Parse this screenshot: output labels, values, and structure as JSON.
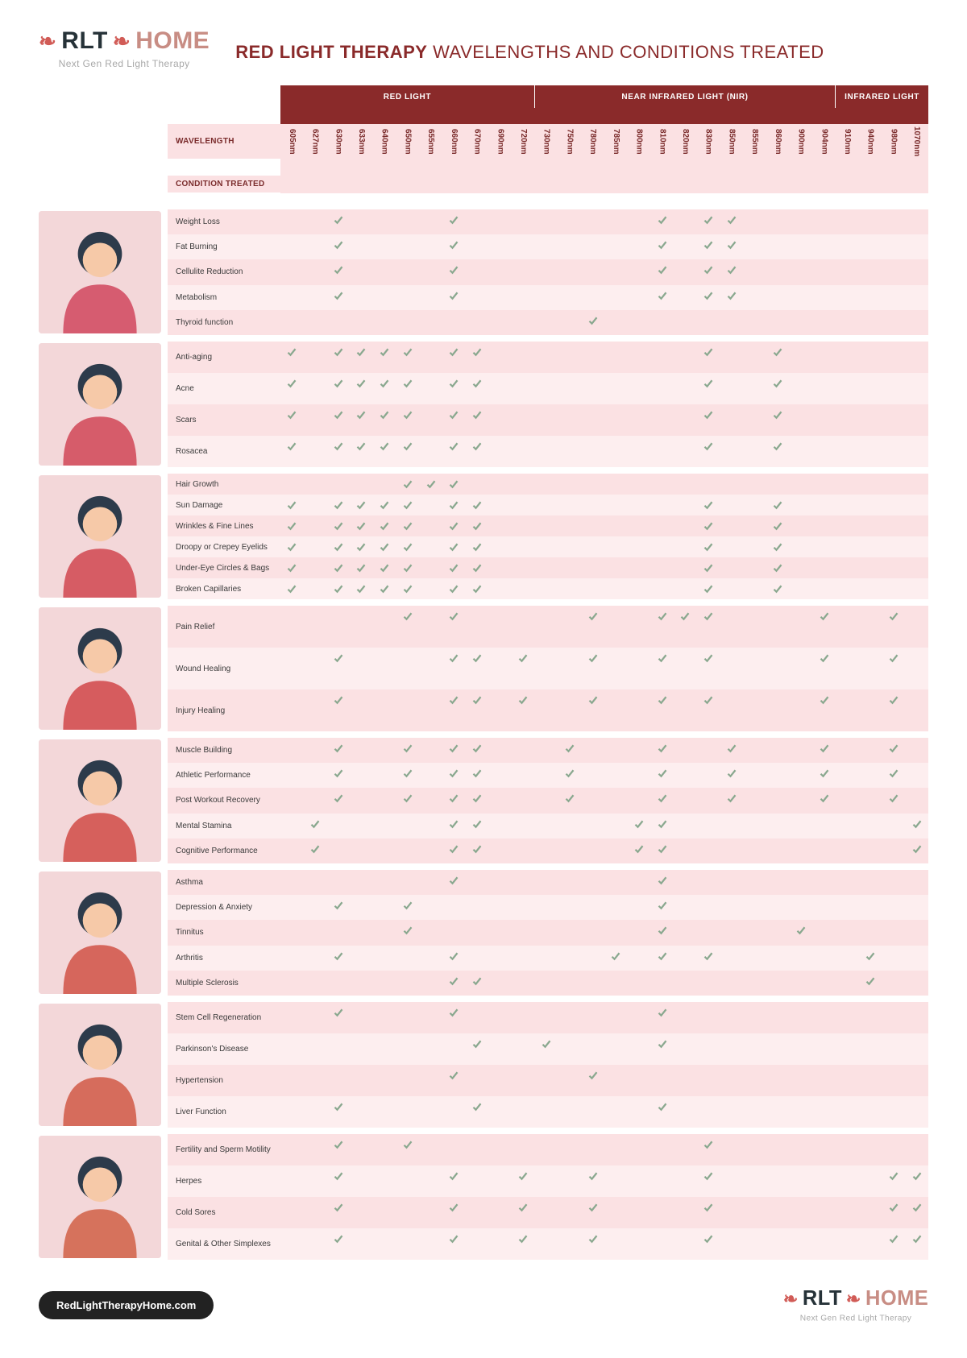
{
  "logo": {
    "left": "RLT",
    "right": "HOME",
    "sub": "Next Gen Red Light Therapy"
  },
  "title_bold": "RED LIGHT THERAPY",
  "title_rest": "WAVELENGTHS AND CONDITIONS TREATED",
  "label_wavelength": "WAVELENGTH",
  "label_condition": "CONDITION TREATED",
  "categories": [
    {
      "name": "RED LIGHT",
      "span": 11
    },
    {
      "name": "NEAR INFRARED LIGHT (NIR)",
      "span": 13
    },
    {
      "name": "INFRARED LIGHT",
      "span": 4
    }
  ],
  "wavelengths": [
    "605nm",
    "627nm",
    "630nm",
    "633nm",
    "640nm",
    "650nm",
    "655nm",
    "660nm",
    "670nm",
    "690nm",
    "720nm",
    "730nm",
    "750nm",
    "780nm",
    "785nm",
    "800nm",
    "810nm",
    "820nm",
    "830nm",
    "850nm",
    "855nm",
    "860nm",
    "900nm",
    "904nm",
    "910nm",
    "940nm",
    "980nm",
    "1070nm"
  ],
  "sections": [
    {
      "rows": [
        {
          "c": "Weight Loss",
          "w": [
            "630nm",
            "660nm",
            "810nm",
            "830nm",
            "850nm"
          ]
        },
        {
          "c": "Fat Burning",
          "w": [
            "630nm",
            "660nm",
            "810nm",
            "830nm",
            "850nm"
          ]
        },
        {
          "c": "Cellulite Reduction",
          "w": [
            "630nm",
            "660nm",
            "810nm",
            "830nm",
            "850nm"
          ]
        },
        {
          "c": "Metabolism",
          "w": [
            "630nm",
            "660nm",
            "810nm",
            "830nm",
            "850nm"
          ]
        },
        {
          "c": "Thyroid function",
          "w": [
            "780nm"
          ]
        }
      ]
    },
    {
      "rows": [
        {
          "c": "Anti-aging",
          "w": [
            "605nm",
            "630nm",
            "633nm",
            "640nm",
            "650nm",
            "660nm",
            "670nm",
            "830nm",
            "860nm"
          ]
        },
        {
          "c": "Acne",
          "w": [
            "605nm",
            "630nm",
            "633nm",
            "640nm",
            "650nm",
            "660nm",
            "670nm",
            "830nm",
            "860nm"
          ]
        },
        {
          "c": "Scars",
          "w": [
            "605nm",
            "630nm",
            "633nm",
            "640nm",
            "650nm",
            "660nm",
            "670nm",
            "830nm",
            "860nm"
          ]
        },
        {
          "c": "Rosacea",
          "w": [
            "605nm",
            "630nm",
            "633nm",
            "640nm",
            "650nm",
            "660nm",
            "670nm",
            "830nm",
            "860nm"
          ]
        }
      ]
    },
    {
      "rows": [
        {
          "c": "Hair Growth",
          "w": [
            "650nm",
            "655nm",
            "660nm"
          ]
        },
        {
          "c": "Sun Damage",
          "w": [
            "605nm",
            "630nm",
            "633nm",
            "640nm",
            "650nm",
            "660nm",
            "670nm",
            "830nm",
            "860nm"
          ]
        },
        {
          "c": "Wrinkles & Fine Lines",
          "w": [
            "605nm",
            "630nm",
            "633nm",
            "640nm",
            "650nm",
            "660nm",
            "670nm",
            "830nm",
            "860nm"
          ]
        },
        {
          "c": "Droopy or Crepey Eyelids",
          "w": [
            "605nm",
            "630nm",
            "633nm",
            "640nm",
            "650nm",
            "660nm",
            "670nm",
            "830nm",
            "860nm"
          ]
        },
        {
          "c": "Under-Eye Circles & Bags",
          "w": [
            "605nm",
            "630nm",
            "633nm",
            "640nm",
            "650nm",
            "660nm",
            "670nm",
            "830nm",
            "860nm"
          ]
        },
        {
          "c": "Broken Capillaries",
          "w": [
            "605nm",
            "630nm",
            "633nm",
            "640nm",
            "650nm",
            "660nm",
            "670nm",
            "830nm",
            "860nm"
          ]
        }
      ]
    },
    {
      "rows": [
        {
          "c": "Pain Relief",
          "w": [
            "650nm",
            "660nm",
            "780nm",
            "810nm",
            "820nm",
            "830nm",
            "904nm",
            "980nm"
          ]
        },
        {
          "c": "Wound Healing",
          "w": [
            "630nm",
            "660nm",
            "670nm",
            "720nm",
            "780nm",
            "810nm",
            "830nm",
            "904nm",
            "980nm"
          ]
        },
        {
          "c": "Injury Healing",
          "w": [
            "630nm",
            "660nm",
            "670nm",
            "720nm",
            "780nm",
            "810nm",
            "830nm",
            "904nm",
            "980nm"
          ]
        }
      ]
    },
    {
      "rows": [
        {
          "c": "Muscle Building",
          "w": [
            "630nm",
            "650nm",
            "660nm",
            "670nm",
            "750nm",
            "810nm",
            "850nm",
            "904nm",
            "980nm"
          ]
        },
        {
          "c": "Athletic Performance",
          "w": [
            "630nm",
            "650nm",
            "660nm",
            "670nm",
            "750nm",
            "810nm",
            "850nm",
            "904nm",
            "980nm"
          ]
        },
        {
          "c": "Post Workout Recovery",
          "w": [
            "630nm",
            "650nm",
            "660nm",
            "670nm",
            "750nm",
            "810nm",
            "850nm",
            "904nm",
            "980nm"
          ]
        },
        {
          "c": "Mental Stamina",
          "w": [
            "627nm",
            "660nm",
            "670nm",
            "800nm",
            "810nm",
            "1070nm"
          ]
        },
        {
          "c": "Cognitive Performance",
          "w": [
            "627nm",
            "660nm",
            "670nm",
            "800nm",
            "810nm",
            "1070nm"
          ]
        }
      ]
    },
    {
      "rows": [
        {
          "c": "Asthma",
          "w": [
            "660nm",
            "810nm"
          ]
        },
        {
          "c": "Depression & Anxiety",
          "w": [
            "630nm",
            "650nm",
            "810nm"
          ]
        },
        {
          "c": "Tinnitus",
          "w": [
            "650nm",
            "810nm",
            "900nm"
          ]
        },
        {
          "c": "Arthritis",
          "w": [
            "630nm",
            "660nm",
            "785nm",
            "810nm",
            "830nm",
            "940nm"
          ]
        },
        {
          "c": "Multiple Sclerosis",
          "w": [
            "660nm",
            "670nm",
            "940nm"
          ]
        }
      ]
    },
    {
      "rows": [
        {
          "c": "Stem Cell Regeneration",
          "w": [
            "630nm",
            "660nm",
            "810nm"
          ]
        },
        {
          "c": "Parkinson's Disease",
          "w": [
            "670nm",
            "730nm",
            "810nm"
          ]
        },
        {
          "c": "Hypertension",
          "w": [
            "660nm",
            "780nm"
          ]
        },
        {
          "c": "Liver Function",
          "w": [
            "630nm",
            "670nm",
            "810nm"
          ]
        }
      ]
    },
    {
      "rows": [
        {
          "c": "Fertility and Sperm Motility",
          "w": [
            "630nm",
            "650nm",
            "830nm"
          ]
        },
        {
          "c": "Herpes",
          "w": [
            "630nm",
            "660nm",
            "720nm",
            "780nm",
            "830nm",
            "980nm",
            "1070nm"
          ]
        },
        {
          "c": "Cold Sores",
          "w": [
            "630nm",
            "660nm",
            "720nm",
            "780nm",
            "830nm",
            "980nm",
            "1070nm"
          ]
        },
        {
          "c": "Genital & Other Simplexes",
          "w": [
            "630nm",
            "660nm",
            "720nm",
            "780nm",
            "830nm",
            "980nm",
            "1070nm"
          ]
        }
      ]
    }
  ],
  "footer_url": "RedLightTherapyHome.com",
  "colors": {
    "dark_red": "#8a2a2a",
    "pink": "#fbe1e3",
    "green_check": "#8aa88f"
  }
}
